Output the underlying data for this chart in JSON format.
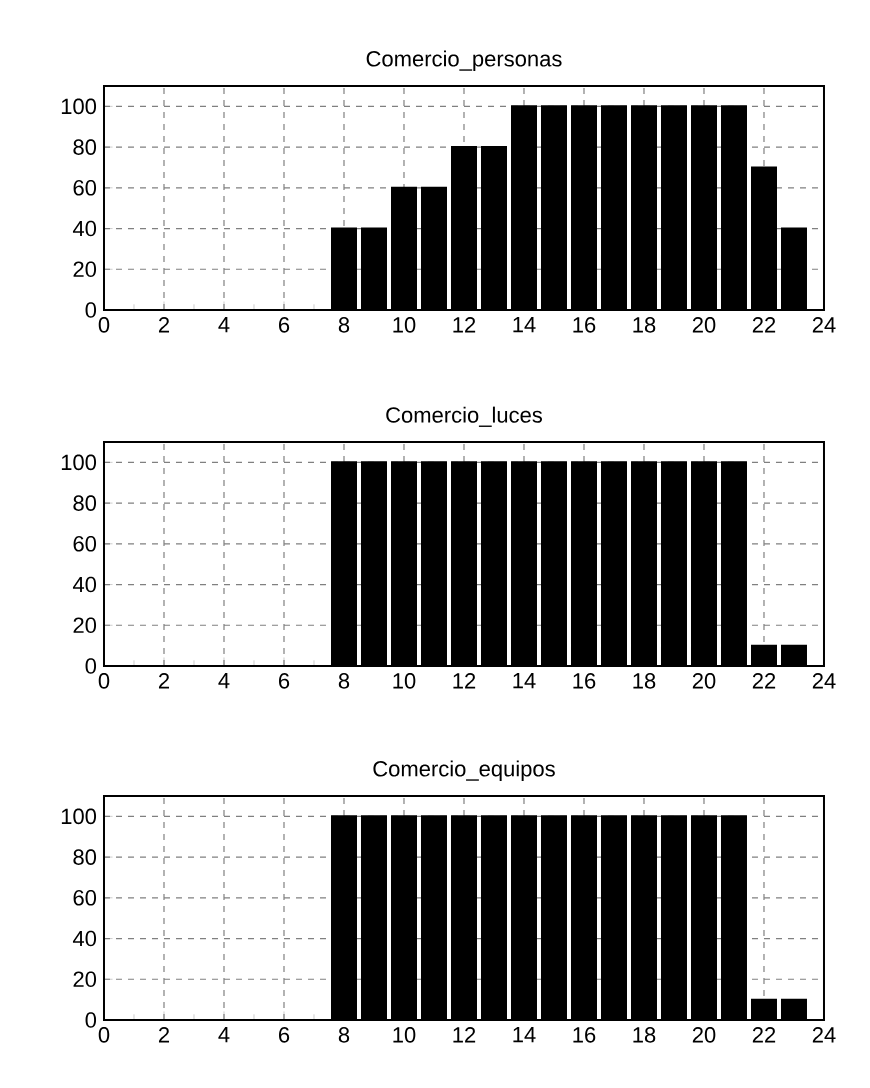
{
  "chart_data": [
    {
      "type": "bar",
      "title": "Comercio_personas",
      "x": [
        0,
        1,
        2,
        3,
        4,
        5,
        6,
        7,
        8,
        9,
        10,
        11,
        12,
        13,
        14,
        15,
        16,
        17,
        18,
        19,
        20,
        21,
        22,
        23
      ],
      "values": [
        0,
        0,
        0,
        0,
        0,
        0,
        0,
        0,
        40,
        40,
        60,
        60,
        80,
        80,
        100,
        100,
        100,
        100,
        100,
        100,
        100,
        100,
        70,
        40
      ],
      "color": "#000000",
      "xlim": [
        0,
        24
      ],
      "xticks": [
        0,
        2,
        4,
        6,
        8,
        10,
        12,
        14,
        16,
        18,
        20,
        22,
        24
      ],
      "ylim": [
        0,
        110
      ],
      "yticks": [
        0,
        20,
        40,
        60,
        80,
        100
      ],
      "grid": true
    },
    {
      "type": "bar",
      "title": "Comercio_luces",
      "x": [
        0,
        1,
        2,
        3,
        4,
        5,
        6,
        7,
        8,
        9,
        10,
        11,
        12,
        13,
        14,
        15,
        16,
        17,
        18,
        19,
        20,
        21,
        22,
        23
      ],
      "values": [
        0,
        0,
        0,
        0,
        0,
        0,
        0,
        0,
        100,
        100,
        100,
        100,
        100,
        100,
        100,
        100,
        100,
        100,
        100,
        100,
        100,
        100,
        10,
        10
      ],
      "color": "#000000",
      "xlim": [
        0,
        24
      ],
      "xticks": [
        0,
        2,
        4,
        6,
        8,
        10,
        12,
        14,
        16,
        18,
        20,
        22,
        24
      ],
      "ylim": [
        0,
        110
      ],
      "yticks": [
        0,
        20,
        40,
        60,
        80,
        100
      ],
      "grid": true
    },
    {
      "type": "bar",
      "title": "Comercio_equipos",
      "x": [
        0,
        1,
        2,
        3,
        4,
        5,
        6,
        7,
        8,
        9,
        10,
        11,
        12,
        13,
        14,
        15,
        16,
        17,
        18,
        19,
        20,
        21,
        22,
        23
      ],
      "values": [
        0,
        0,
        0,
        0,
        0,
        0,
        0,
        0,
        100,
        100,
        100,
        100,
        100,
        100,
        100,
        100,
        100,
        100,
        100,
        100,
        100,
        100,
        10,
        10
      ],
      "color": "#000000",
      "xlim": [
        0,
        24
      ],
      "xticks": [
        0,
        2,
        4,
        6,
        8,
        10,
        12,
        14,
        16,
        18,
        20,
        22,
        24
      ],
      "ylim": [
        0,
        110
      ],
      "yticks": [
        0,
        20,
        40,
        60,
        80,
        100
      ],
      "grid": true
    }
  ]
}
